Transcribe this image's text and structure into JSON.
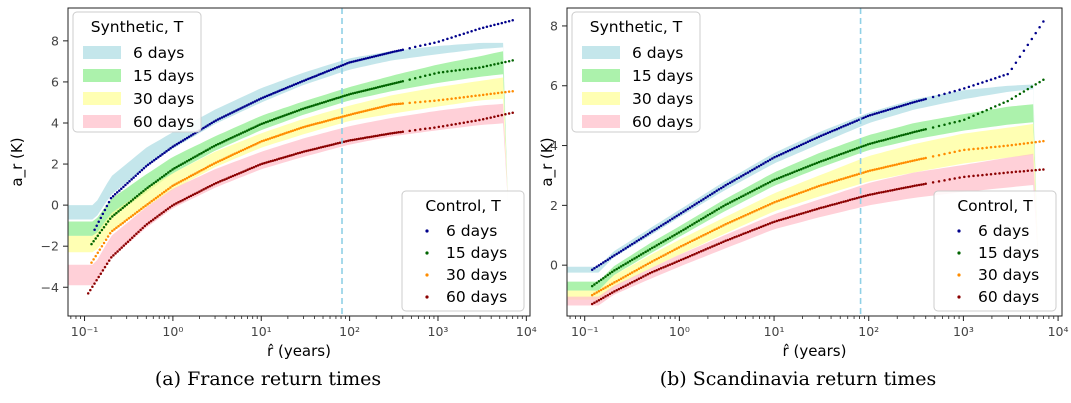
{
  "chart_data": [
    {
      "type": "scatter",
      "caption": "(a) France return times",
      "xlabel": "r̂ (years)",
      "ylabel": "a_r (K)",
      "xscale": "log",
      "xlim": [
        0.065,
        11000
      ],
      "ylim": [
        -5.4,
        9.6
      ],
      "xticks": [
        0.1,
        1,
        10,
        100,
        1000,
        10000
      ],
      "xtick_labels": [
        "10⁻¹",
        "10⁰",
        "10¹",
        "10²",
        "10³",
        "10⁴"
      ],
      "yticks": [
        -4,
        -2,
        0,
        2,
        4,
        6,
        8
      ],
      "ytick_labels": [
        "−4",
        "−2",
        "0",
        "2",
        "4",
        "6",
        "8"
      ],
      "vline_x": 82,
      "legend_synthetic_title": "Synthetic, T",
      "legend_control_title": "Control, T",
      "series": [
        {
          "name": "6 days",
          "band_color": "#b0dde4",
          "point_color": "#00008b",
          "band_x": [
            0.065,
            0.13,
            0.2,
            0.5,
            1,
            3,
            10,
            30,
            100,
            300,
            1000,
            3000,
            6200
          ],
          "band_lo": [
            -0.7,
            -0.7,
            0.5,
            1.9,
            2.75,
            3.95,
            5.0,
            5.85,
            6.6,
            7.05,
            7.35,
            7.6,
            7.7
          ],
          "band_hi": [
            0.0,
            0.0,
            1.4,
            2.8,
            3.55,
            4.65,
            5.7,
            6.45,
            7.15,
            7.5,
            7.75,
            7.9,
            7.9
          ],
          "points_x": [
            0.13,
            0.2,
            0.5,
            1,
            3,
            10,
            30,
            100,
            300,
            1000,
            3000,
            7000
          ],
          "points_y": [
            -1.2,
            0.35,
            1.9,
            2.85,
            4.1,
            5.2,
            6.05,
            6.95,
            7.45,
            7.95,
            8.6,
            9.0
          ]
        },
        {
          "name": "15 days",
          "band_color": "#90ee90",
          "point_color": "#006400",
          "band_x": [
            0.065,
            0.13,
            0.2,
            0.5,
            1,
            3,
            10,
            30,
            100,
            300,
            1000,
            3000,
            6200
          ],
          "band_lo": [
            -1.5,
            -1.5,
            -0.6,
            0.6,
            1.55,
            2.65,
            3.65,
            4.4,
            5.1,
            5.55,
            5.95,
            6.25,
            6.4
          ],
          "band_hi": [
            -0.8,
            -0.8,
            0.3,
            1.5,
            2.35,
            3.35,
            4.35,
            5.05,
            5.75,
            6.3,
            6.85,
            7.25,
            7.55
          ],
          "points_x": [
            0.12,
            0.2,
            0.5,
            1,
            3,
            10,
            30,
            100,
            300,
            1000,
            3000,
            7000
          ],
          "points_y": [
            -1.9,
            -0.6,
            0.8,
            1.75,
            2.9,
            3.95,
            4.7,
            5.4,
            5.9,
            6.45,
            6.7,
            7.05
          ]
        },
        {
          "name": "30 days",
          "band_color": "#ffff99",
          "point_color": "#ff8c00",
          "band_x": [
            0.065,
            0.13,
            0.2,
            0.5,
            1,
            3,
            10,
            30,
            100,
            300,
            1000,
            3000,
            6200
          ],
          "band_lo": [
            -2.3,
            -2.3,
            -1.3,
            -0.1,
            0.75,
            1.85,
            2.8,
            3.45,
            4.1,
            4.45,
            4.8,
            5.1,
            5.2
          ],
          "band_hi": [
            -1.5,
            -1.5,
            -0.4,
            0.8,
            1.55,
            2.6,
            3.5,
            4.2,
            4.85,
            5.35,
            5.75,
            6.05,
            6.25
          ],
          "points_x": [
            0.12,
            0.2,
            0.5,
            1,
            3,
            10,
            30,
            100,
            300,
            1000,
            3000,
            7000
          ],
          "points_y": [
            -2.8,
            -1.3,
            0.0,
            0.95,
            2.05,
            3.1,
            3.8,
            4.4,
            4.9,
            5.1,
            5.35,
            5.55
          ]
        },
        {
          "name": "60 days",
          "band_color": "#ffc0cb",
          "point_color": "#8b0000",
          "band_x": [
            0.065,
            0.13,
            0.2,
            0.5,
            1,
            3,
            10,
            30,
            100,
            300,
            1000,
            3000,
            6200
          ],
          "band_lo": [
            -3.9,
            -3.9,
            -2.6,
            -1.1,
            -0.15,
            0.85,
            1.75,
            2.35,
            2.95,
            3.35,
            3.65,
            3.9,
            4.0
          ],
          "band_hi": [
            -2.9,
            -2.9,
            -1.5,
            -0.1,
            0.8,
            1.75,
            2.6,
            3.25,
            3.85,
            4.25,
            4.6,
            4.85,
            4.95
          ],
          "points_x": [
            0.11,
            0.2,
            0.5,
            1,
            3,
            10,
            30,
            100,
            300,
            1000,
            3000,
            7000
          ],
          "points_y": [
            -4.3,
            -2.55,
            -0.95,
            0.0,
            1.05,
            2.0,
            2.6,
            3.15,
            3.5,
            3.8,
            4.15,
            4.5
          ]
        }
      ]
    },
    {
      "type": "scatter",
      "caption": "(b) Scandinavia return times",
      "xlabel": "r̂ (years)",
      "ylabel": "a_r (K)",
      "xscale": "log",
      "xlim": [
        0.065,
        11000
      ],
      "ylim": [
        -1.7,
        8.6
      ],
      "xticks": [
        0.1,
        1,
        10,
        100,
        1000,
        10000
      ],
      "xtick_labels": [
        "10⁻¹",
        "10⁰",
        "10¹",
        "10²",
        "10³",
        "10⁴"
      ],
      "yticks": [
        0,
        2,
        4,
        6,
        8
      ],
      "ytick_labels": [
        "0",
        "2",
        "4",
        "6",
        "8"
      ],
      "vline_x": 82,
      "legend_synthetic_title": "Synthetic, T",
      "legend_control_title": "Control, T",
      "series": [
        {
          "name": "6 days",
          "band_color": "#b0dde4",
          "point_color": "#00008b",
          "band_x": [
            0.065,
            0.14,
            0.2,
            0.5,
            1,
            3,
            10,
            30,
            100,
            300,
            1000,
            3000,
            6200
          ],
          "band_lo": [
            -0.25,
            -0.25,
            0.25,
            1.0,
            1.6,
            2.5,
            3.4,
            4.05,
            4.75,
            5.2,
            5.55,
            5.8,
            5.9
          ],
          "band_hi": [
            -0.05,
            -0.05,
            0.45,
            1.25,
            1.85,
            2.8,
            3.75,
            4.45,
            5.1,
            5.55,
            5.85,
            6.0,
            6.05
          ],
          "points_x": [
            0.12,
            0.2,
            0.5,
            1,
            3,
            10,
            30,
            100,
            300,
            1000,
            3000,
            7000
          ],
          "points_y": [
            -0.15,
            0.3,
            1.1,
            1.7,
            2.65,
            3.6,
            4.3,
            5.0,
            5.45,
            5.9,
            6.4,
            8.15
          ]
        },
        {
          "name": "15 days",
          "band_color": "#90ee90",
          "point_color": "#006400",
          "band_x": [
            0.065,
            0.14,
            0.2,
            0.5,
            1,
            3,
            10,
            30,
            100,
            300,
            1000,
            3000,
            6200
          ],
          "band_lo": [
            -0.85,
            -0.85,
            -0.35,
            0.4,
            0.95,
            1.8,
            2.65,
            3.25,
            3.85,
            4.2,
            4.5,
            4.7,
            4.8
          ],
          "band_hi": [
            -0.55,
            -0.55,
            -0.05,
            0.75,
            1.3,
            2.2,
            3.1,
            3.75,
            4.35,
            4.75,
            5.05,
            5.3,
            5.4
          ],
          "points_x": [
            0.12,
            0.2,
            0.5,
            1,
            3,
            10,
            30,
            100,
            300,
            1000,
            3000,
            7000
          ],
          "points_y": [
            -0.7,
            -0.2,
            0.55,
            1.1,
            2.0,
            2.85,
            3.45,
            4.05,
            4.45,
            4.85,
            5.5,
            6.2
          ]
        },
        {
          "name": "30 days",
          "band_color": "#ffff99",
          "point_color": "#ff8c00",
          "band_x": [
            0.065,
            0.14,
            0.2,
            0.5,
            1,
            3,
            10,
            30,
            100,
            300,
            1000,
            3000,
            6200
          ],
          "band_lo": [
            -1.15,
            -1.15,
            -0.75,
            -0.1,
            0.35,
            1.05,
            1.8,
            2.3,
            2.8,
            3.1,
            3.4,
            3.6,
            3.7
          ],
          "band_hi": [
            -0.85,
            -0.85,
            -0.35,
            0.35,
            0.85,
            1.6,
            2.4,
            3.0,
            3.65,
            4.05,
            4.4,
            4.6,
            4.75
          ],
          "points_x": [
            0.12,
            0.2,
            0.5,
            1,
            3,
            10,
            30,
            100,
            300,
            1000,
            3000,
            7000
          ],
          "points_y": [
            -1.0,
            -0.6,
            0.1,
            0.6,
            1.35,
            2.1,
            2.65,
            3.15,
            3.5,
            3.85,
            4.0,
            4.15
          ]
        },
        {
          "name": "60 days",
          "band_color": "#ffc0cb",
          "point_color": "#8b0000",
          "band_x": [
            0.065,
            0.14,
            0.2,
            0.5,
            1,
            3,
            10,
            30,
            100,
            300,
            1000,
            3000,
            6200
          ],
          "band_lo": [
            -1.35,
            -1.35,
            -1.0,
            -0.45,
            -0.05,
            0.55,
            1.2,
            1.6,
            2.0,
            2.25,
            2.45,
            2.6,
            2.7
          ],
          "band_hi": [
            -1.05,
            -1.05,
            -0.7,
            -0.1,
            0.35,
            1.0,
            1.7,
            2.2,
            2.75,
            3.1,
            3.35,
            3.6,
            3.75
          ],
          "points_x": [
            0.12,
            0.2,
            0.5,
            1,
            3,
            10,
            30,
            100,
            300,
            1000,
            3000,
            7000
          ],
          "points_y": [
            -1.3,
            -0.9,
            -0.25,
            0.15,
            0.8,
            1.45,
            1.9,
            2.35,
            2.65,
            2.95,
            3.1,
            3.2
          ]
        }
      ]
    }
  ]
}
